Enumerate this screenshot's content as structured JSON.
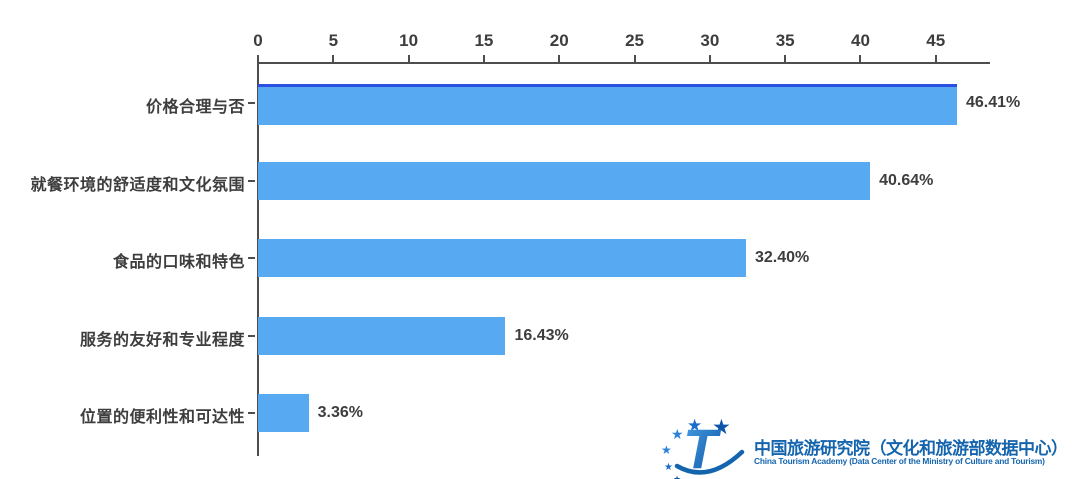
{
  "chart_data": {
    "type": "bar",
    "orientation": "horizontal",
    "title": "",
    "xlabel": "",
    "ylabel": "",
    "categories": [
      "价格合理与否",
      "就餐环境的舒适度和文化氛围",
      "食品的口味和特色",
      "服务的友好和专业程度",
      "位置的便利性和可达性"
    ],
    "values": [
      46.41,
      40.64,
      32.4,
      16.43,
      3.36
    ],
    "value_labels": [
      "46.41%",
      "40.64%",
      "32.40%",
      "16.43%",
      "3.36%"
    ],
    "x_ticks": [
      0,
      5,
      10,
      15,
      20,
      25,
      30,
      35,
      40,
      45
    ],
    "xlim": [
      0,
      48.6
    ],
    "grid": false,
    "legend_position": "none",
    "axis_position": "top",
    "bar_color": "#57aaf2",
    "first_bar_top_edge_color": "#2b50e0",
    "axis_color": "#4d4d4d",
    "text_color": "#3d3d3d"
  },
  "footer": {
    "logo": {
      "icon": "china-tourism-academy-logo",
      "title_zh": "中国旅游研究院（文化和旅游部数据中心）",
      "title_en": "China Tourism Academy (Data Center of the Ministry of Culture and Tourism)",
      "brand_color": "#1565ae"
    }
  }
}
